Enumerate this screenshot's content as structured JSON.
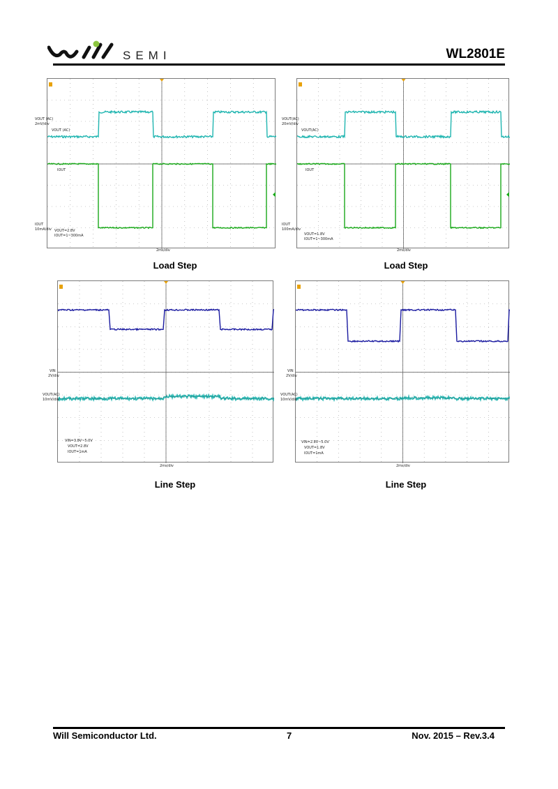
{
  "header": {
    "logo_text": "SEMI",
    "part_number": "WL2801E"
  },
  "colors": {
    "cyan_trace": "#1fb5b0",
    "green_trace": "#19a819",
    "blue_trace": "#1a1aa0",
    "grid": "#9a9a9a",
    "marker": "#e8a20c",
    "logo_dot": "#8cc63f"
  },
  "figures": [
    {
      "caption": "Load Step",
      "labels": {
        "ch1_name": "VOUT (AC)",
        "ch1_scale": "2mV/div",
        "ch1_inner": "VOUT (AC)",
        "ch2_inner": "IOUT",
        "ch2_name": "IOUT",
        "ch2_scale": "10mA/div",
        "cond1": "VOUT=2.8V",
        "cond2": "IOUT=1~300mA",
        "timebase": "2ms/div"
      }
    },
    {
      "caption": "Load Step",
      "labels": {
        "ch1_name": "VOUT(AC)",
        "ch1_scale": "20mV/div",
        "ch1_inner": "VOUT(AC)",
        "ch2_inner": "IOUT",
        "ch2_name": "IOUT",
        "ch2_scale": "100mA/div",
        "cond1": "VOUT=1.8V",
        "cond2": "IOUT=1~300mA",
        "timebase": "2ms/div"
      }
    },
    {
      "caption": "Line Step",
      "labels": {
        "ch1_name": "VIN",
        "ch1_scale": "2V/div",
        "ch2_name": "VOUT(AC)",
        "ch2_scale": "10mV/div",
        "cond1": "VIN=3.8V~5.0V",
        "cond2": "VOUT=2.8V",
        "cond3": "IOUT=1mA",
        "timebase": "2ms/div"
      }
    },
    {
      "caption": "Line Step",
      "labels": {
        "ch1_name": "VIN",
        "ch1_scale": "2V/div",
        "ch2_name": "VOUT(AC)",
        "ch2_scale": "10mV/div",
        "cond1": "VIN=2.8V~5.0V",
        "cond2": "VOUT=1.8V",
        "cond3": "IOUT=1mA",
        "timebase": "2ms/div"
      }
    }
  ],
  "footer": {
    "company": "Will Semiconductor Ltd.",
    "page": "7",
    "revision": "Nov. 2015 – Rev.3.4"
  }
}
